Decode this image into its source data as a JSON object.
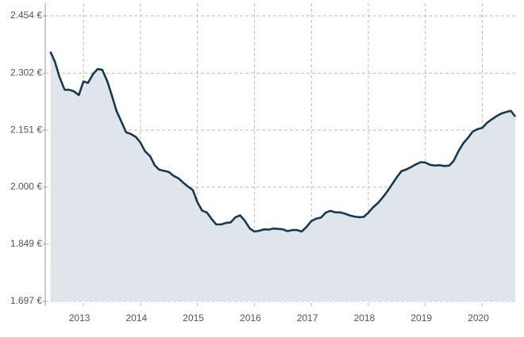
{
  "chart_data": {
    "type": "area",
    "x": [
      2012.42,
      2012.5,
      2012.58,
      2012.67,
      2012.75,
      2012.83,
      2012.92,
      2013.0,
      2013.08,
      2013.17,
      2013.25,
      2013.33,
      2013.42,
      2013.5,
      2013.58,
      2013.67,
      2013.75,
      2013.83,
      2013.92,
      2014.0,
      2014.08,
      2014.17,
      2014.25,
      2014.33,
      2014.42,
      2014.5,
      2014.58,
      2014.67,
      2014.75,
      2014.83,
      2014.92,
      2015.0,
      2015.08,
      2015.17,
      2015.25,
      2015.33,
      2015.42,
      2015.5,
      2015.58,
      2015.67,
      2015.75,
      2015.83,
      2015.92,
      2016.0,
      2016.08,
      2016.17,
      2016.25,
      2016.33,
      2016.42,
      2016.5,
      2016.58,
      2016.67,
      2016.75,
      2016.83,
      2016.92,
      2017.0,
      2017.08,
      2017.17,
      2017.25,
      2017.33,
      2017.42,
      2017.5,
      2017.58,
      2017.67,
      2017.75,
      2017.83,
      2017.92,
      2018.0,
      2018.08,
      2018.17,
      2018.25,
      2018.33,
      2018.42,
      2018.5,
      2018.58,
      2018.67,
      2018.75,
      2018.83,
      2018.92,
      2019.0,
      2019.08,
      2019.17,
      2019.25,
      2019.33,
      2019.42,
      2019.5,
      2019.58,
      2019.67,
      2019.75,
      2019.83,
      2019.92,
      2020.0,
      2020.08,
      2020.17,
      2020.25,
      2020.33,
      2020.42,
      2020.5,
      2020.58
    ],
    "values": [
      2359,
      2332,
      2292,
      2258,
      2258,
      2254,
      2244,
      2280,
      2276,
      2300,
      2313,
      2311,
      2280,
      2242,
      2202,
      2172,
      2145,
      2141,
      2133,
      2118,
      2095,
      2082,
      2058,
      2046,
      2043,
      2040,
      2030,
      2023,
      2012,
      2002,
      1992,
      1960,
      1938,
      1932,
      1915,
      1901,
      1901,
      1905,
      1906,
      1920,
      1925,
      1911,
      1890,
      1882,
      1884,
      1888,
      1887,
      1890,
      1889,
      1888,
      1883,
      1886,
      1886,
      1882,
      1895,
      1910,
      1916,
      1919,
      1932,
      1937,
      1933,
      1933,
      1930,
      1925,
      1922,
      1920,
      1921,
      1932,
      1946,
      1958,
      1972,
      1988,
      2008,
      2026,
      2042,
      2047,
      2053,
      2060,
      2066,
      2065,
      2059,
      2057,
      2058,
      2056,
      2057,
      2070,
      2095,
      2117,
      2131,
      2147,
      2154,
      2157,
      2170,
      2180,
      2188,
      2195,
      2199,
      2202,
      2187
    ],
    "color": "#173a52",
    "fill": "#dfe5ea",
    "xlim": [
      2012.33,
      2020.62
    ],
    "xticks": [
      2013,
      2014,
      2015,
      2016,
      2017,
      2018,
      2019,
      2020
    ],
    "ylim": [
      1697,
      2454
    ],
    "yticks": [
      {
        "value": 1697,
        "label": "1.697 €"
      },
      {
        "value": 1849,
        "label": "1.849 €"
      },
      {
        "value": 2000,
        "label": "2.000 €"
      },
      {
        "value": 2151,
        "label": "2.151 €"
      },
      {
        "value": 2302,
        "label": "2.302 €"
      },
      {
        "value": 2454,
        "label": "2.454 €"
      }
    ],
    "grid": true
  }
}
